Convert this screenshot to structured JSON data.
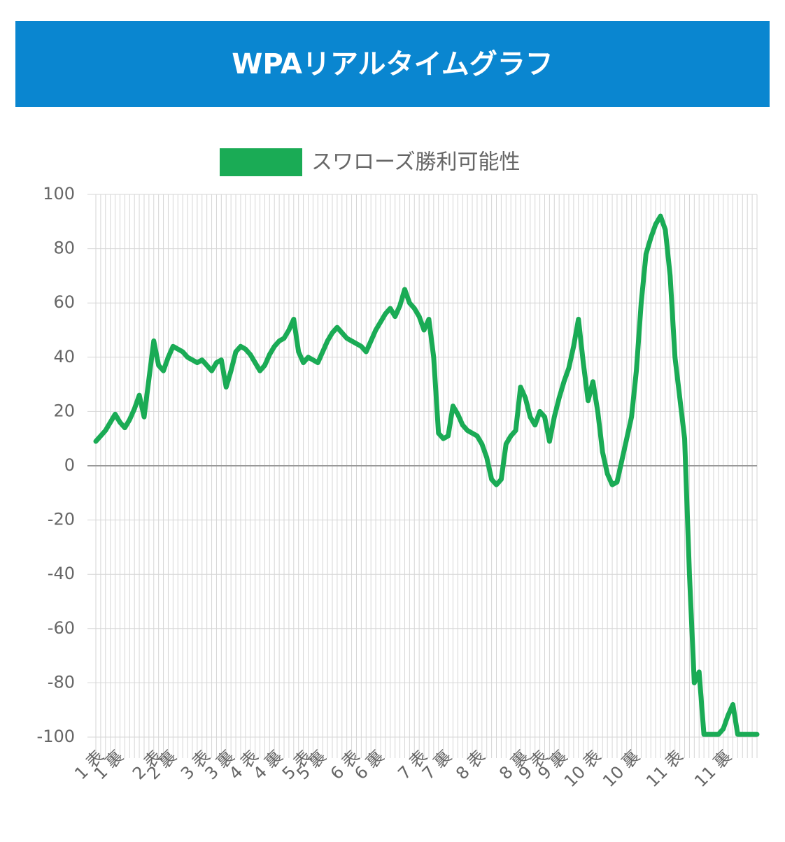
{
  "chart_data": {
    "type": "line",
    "title": "WPAリアルタイムグラフ",
    "categories": [
      "1 表",
      null,
      null,
      null,
      "1 裏",
      null,
      null,
      null,
      null,
      null,
      null,
      null,
      "2 表",
      null,
      null,
      "2 裏",
      null,
      null,
      null,
      null,
      null,
      null,
      "3 表",
      null,
      null,
      null,
      null,
      "3 裏",
      null,
      null,
      null,
      null,
      "4 表",
      null,
      null,
      null,
      null,
      "4 裏",
      null,
      null,
      null,
      null,
      null,
      "5 表",
      null,
      null,
      "5 裏",
      null,
      null,
      null,
      null,
      null,
      null,
      "6 表",
      null,
      null,
      null,
      null,
      "6 裏",
      null,
      null,
      null,
      null,
      null,
      null,
      null,
      null,
      "7 表",
      null,
      null,
      null,
      null,
      "7 裏",
      null,
      null,
      null,
      null,
      null,
      null,
      "8 表",
      null,
      null,
      null,
      null,
      null,
      null,
      null,
      null,
      "8 裏",
      null,
      null,
      null,
      "9 表",
      null,
      null,
      null,
      "9 裏",
      null,
      null,
      null,
      null,
      null,
      null,
      "10 表",
      null,
      null,
      null,
      null,
      null,
      null,
      null,
      "10 裏",
      null,
      null,
      null,
      null,
      null,
      null,
      null,
      null,
      "11 表",
      null,
      null,
      null,
      null,
      null,
      null,
      null,
      null,
      null,
      "11 裏",
      null,
      null,
      null,
      null,
      null,
      null,
      null
    ],
    "series": [
      {
        "name": "スワローズ勝利可能性",
        "color": "#1aab55",
        "values": [
          9,
          11,
          13,
          16,
          19,
          16,
          14,
          17,
          21,
          26,
          18,
          32,
          46,
          37,
          35,
          40,
          44,
          43,
          42,
          40,
          39,
          38,
          39,
          37,
          35,
          38,
          39,
          29,
          35,
          42,
          44,
          43,
          41,
          38,
          35,
          37,
          41,
          44,
          46,
          47,
          50,
          54,
          42,
          38,
          40,
          39,
          38,
          42,
          46,
          49,
          51,
          49,
          47,
          46,
          45,
          44,
          42,
          46,
          50,
          53,
          56,
          58,
          55,
          59,
          65,
          60,
          58,
          55,
          50,
          54,
          40,
          12,
          10,
          11,
          22,
          19,
          15,
          13,
          12,
          11,
          8,
          3,
          -5,
          -7,
          -5,
          8,
          11,
          13,
          29,
          25,
          18,
          15,
          20,
          18,
          9,
          18,
          25,
          31,
          36,
          44,
          54,
          38,
          24,
          31,
          20,
          5,
          -3,
          -7,
          -6,
          2,
          10,
          18,
          35,
          60,
          78,
          84,
          89,
          92,
          87,
          70,
          40,
          25,
          10,
          -40,
          -80,
          -76,
          -99,
          -99,
          -99,
          -99,
          -97,
          -92,
          -88,
          -99,
          -99,
          -99,
          -99,
          -99
        ]
      }
    ],
    "ylim": [
      -100,
      100
    ],
    "yticks": [
      -100,
      -80,
      -60,
      -40,
      -20,
      0,
      20,
      40,
      60,
      80,
      100
    ],
    "grid": true,
    "legend": "top"
  }
}
